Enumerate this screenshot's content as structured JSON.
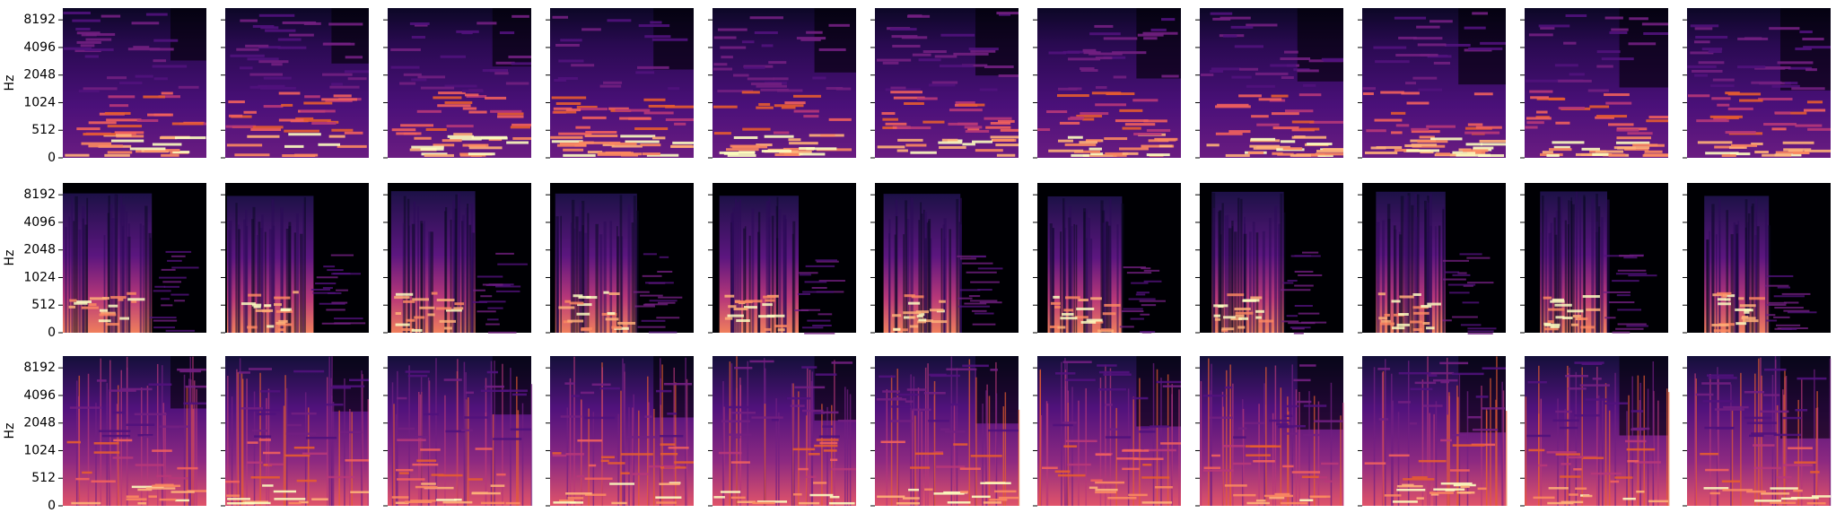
{
  "chart_data": {
    "type": "spectrogram-grid",
    "ylabel": "Hz",
    "yscale": "symlog",
    "linthresh": 512,
    "ylim": [
      0,
      11025
    ],
    "yticks": [
      0,
      512,
      1024,
      2048,
      4096,
      8192
    ]
  }
}
